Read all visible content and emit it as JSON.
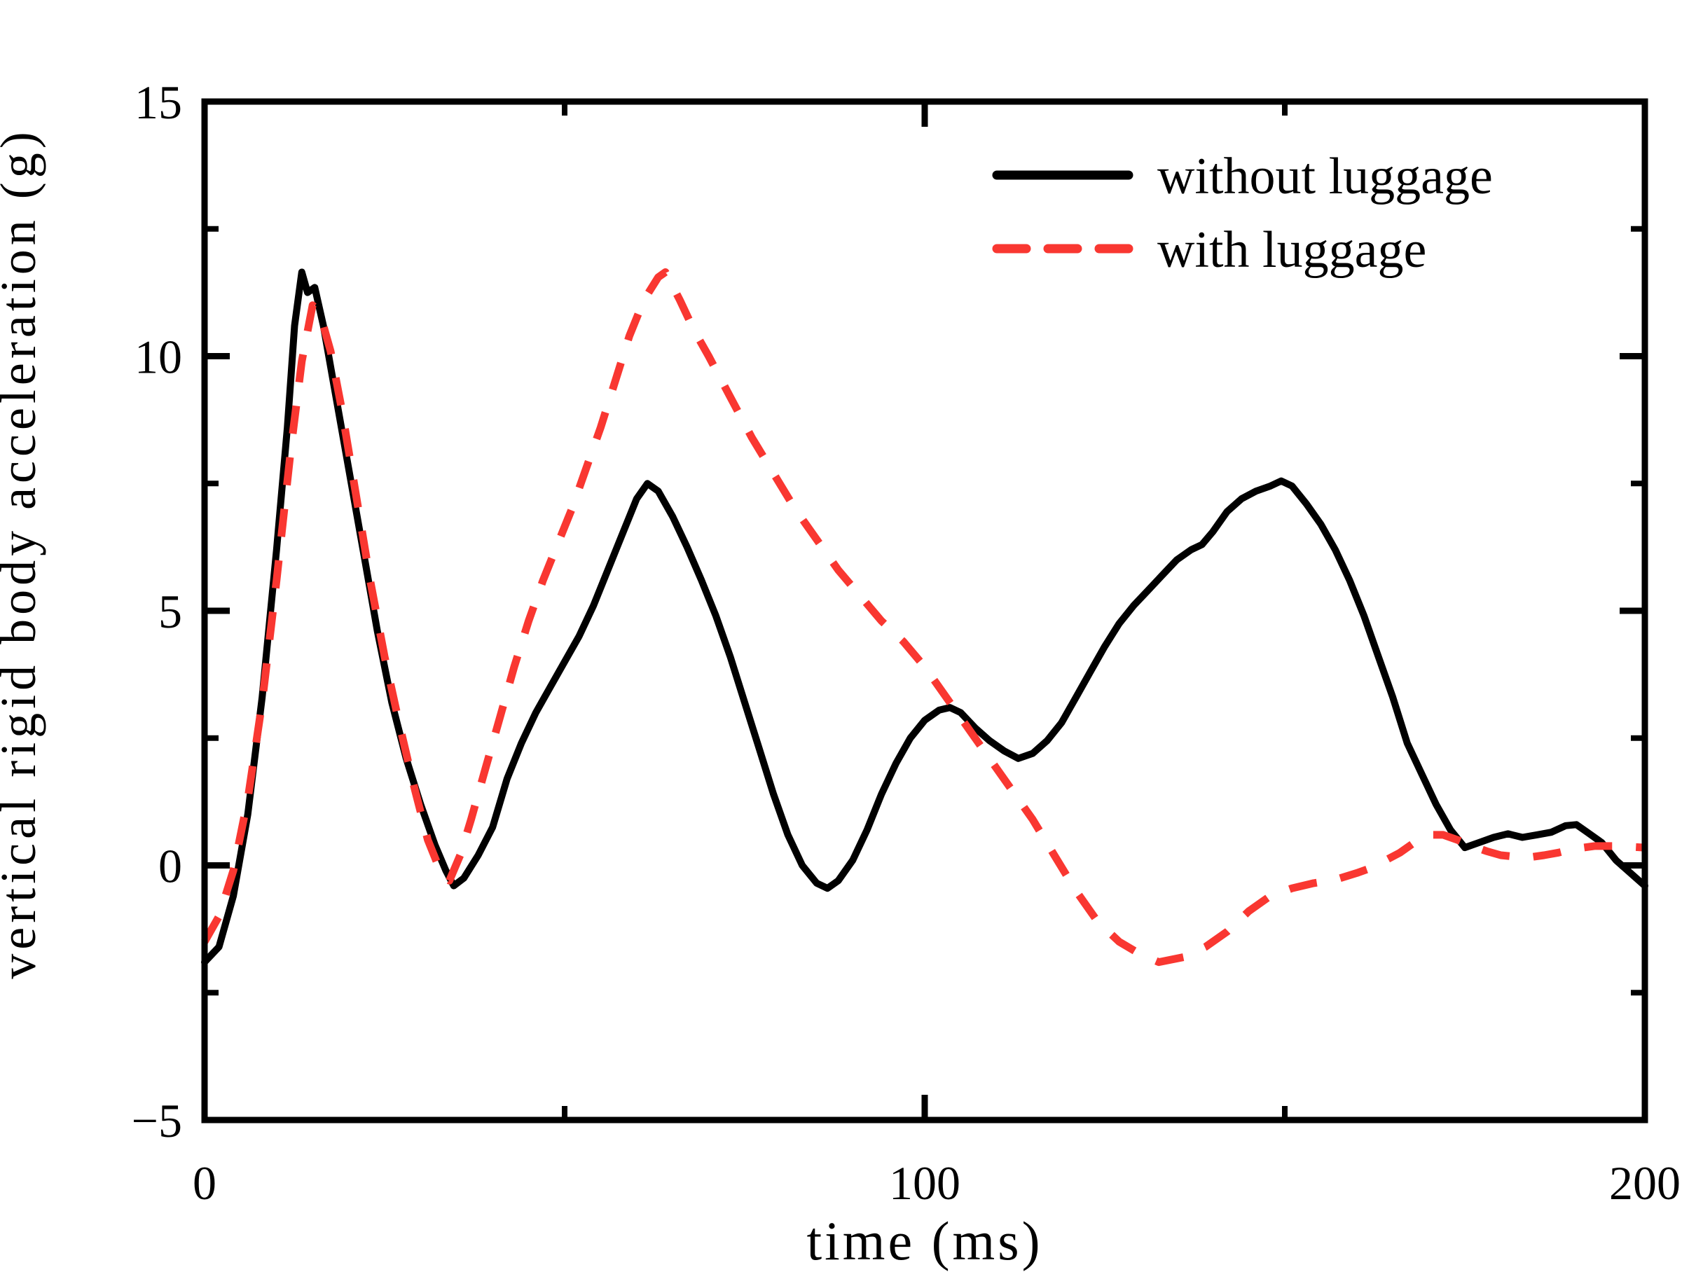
{
  "figure": {
    "background": "#ffffff"
  },
  "chart_data": {
    "type": "line",
    "title": "",
    "xlabel": "time (ms)",
    "ylabel": "vertical rigid body acceleration (g)",
    "xlim": [
      0,
      200
    ],
    "ylim": [
      -5,
      15
    ],
    "grid": false,
    "legend_position": "top-right",
    "x_major_ticks": [
      0,
      100,
      200
    ],
    "x_minor_ticks": [
      50,
      150
    ],
    "x_tick_labels": [
      "0",
      "100",
      "200"
    ],
    "y_major_ticks": [
      -5,
      0,
      5,
      10,
      15
    ],
    "y_minor_ticks": [
      -2.5,
      2.5,
      7.5,
      12.5
    ],
    "y_tick_labels": [
      "−5",
      "0",
      "5",
      "10",
      "15"
    ],
    "series": [
      {
        "name": "without luggage",
        "color": "#000000",
        "line_style": "solid",
        "points": [
          [
            0,
            -1.9
          ],
          [
            2,
            -1.6
          ],
          [
            4,
            -0.6
          ],
          [
            6,
            1.0
          ],
          [
            8,
            3.3
          ],
          [
            10,
            6.2
          ],
          [
            11.5,
            8.6
          ],
          [
            12.5,
            10.6
          ],
          [
            13.5,
            11.65
          ],
          [
            14.3,
            11.25
          ],
          [
            15.3,
            11.35
          ],
          [
            16.5,
            10.6
          ],
          [
            18,
            9.4
          ],
          [
            20,
            7.8
          ],
          [
            22,
            6.2
          ],
          [
            24,
            4.6
          ],
          [
            26,
            3.2
          ],
          [
            28,
            2.1
          ],
          [
            30,
            1.2
          ],
          [
            32,
            0.4
          ],
          [
            33.5,
            -0.1
          ],
          [
            34.6,
            -0.4
          ],
          [
            36,
            -0.25
          ],
          [
            38,
            0.2
          ],
          [
            40,
            0.75
          ],
          [
            42,
            1.7
          ],
          [
            44,
            2.4
          ],
          [
            46,
            3.0
          ],
          [
            48,
            3.5
          ],
          [
            50,
            4.0
          ],
          [
            52,
            4.5
          ],
          [
            54,
            5.1
          ],
          [
            56,
            5.8
          ],
          [
            58,
            6.5
          ],
          [
            60,
            7.2
          ],
          [
            61.5,
            7.5
          ],
          [
            63,
            7.35
          ],
          [
            65,
            6.85
          ],
          [
            67,
            6.25
          ],
          [
            69,
            5.6
          ],
          [
            71,
            4.9
          ],
          [
            73,
            4.1
          ],
          [
            75,
            3.2
          ],
          [
            77,
            2.3
          ],
          [
            79,
            1.4
          ],
          [
            81,
            0.6
          ],
          [
            83,
            0.0
          ],
          [
            85,
            -0.35
          ],
          [
            86.5,
            -0.45
          ],
          [
            88,
            -0.3
          ],
          [
            90,
            0.1
          ],
          [
            92,
            0.7
          ],
          [
            94,
            1.4
          ],
          [
            96,
            2.0
          ],
          [
            98,
            2.5
          ],
          [
            100,
            2.85
          ],
          [
            102,
            3.05
          ],
          [
            103.5,
            3.1
          ],
          [
            105,
            3.0
          ],
          [
            107,
            2.7
          ],
          [
            109,
            2.45
          ],
          [
            111,
            2.25
          ],
          [
            113,
            2.1
          ],
          [
            115,
            2.2
          ],
          [
            117,
            2.45
          ],
          [
            119,
            2.8
          ],
          [
            121,
            3.3
          ],
          [
            123,
            3.8
          ],
          [
            125,
            4.3
          ],
          [
            127,
            4.75
          ],
          [
            129,
            5.1
          ],
          [
            131,
            5.4
          ],
          [
            133,
            5.7
          ],
          [
            135,
            6.0
          ],
          [
            137,
            6.2
          ],
          [
            138.5,
            6.3
          ],
          [
            140,
            6.55
          ],
          [
            142,
            6.95
          ],
          [
            144,
            7.2
          ],
          [
            146,
            7.35
          ],
          [
            148,
            7.45
          ],
          [
            149.5,
            7.55
          ],
          [
            151,
            7.45
          ],
          [
            153,
            7.1
          ],
          [
            155,
            6.7
          ],
          [
            157,
            6.2
          ],
          [
            159,
            5.6
          ],
          [
            161,
            4.9
          ],
          [
            163,
            4.1
          ],
          [
            165,
            3.3
          ],
          [
            167,
            2.4
          ],
          [
            169,
            1.8
          ],
          [
            171,
            1.2
          ],
          [
            173,
            0.7
          ],
          [
            175,
            0.35
          ],
          [
            177,
            0.45
          ],
          [
            179,
            0.55
          ],
          [
            181,
            0.62
          ],
          [
            183,
            0.55
          ],
          [
            185,
            0.6
          ],
          [
            187,
            0.65
          ],
          [
            189,
            0.78
          ],
          [
            190.5,
            0.8
          ],
          [
            192,
            0.65
          ],
          [
            194,
            0.45
          ],
          [
            196,
            0.1
          ],
          [
            198,
            -0.15
          ],
          [
            200,
            -0.4
          ]
        ]
      },
      {
        "name": "with luggage",
        "color": "#f93731",
        "line_style": "dashed",
        "points": [
          [
            0,
            -1.5
          ],
          [
            2,
            -1.0
          ],
          [
            4,
            -0.1
          ],
          [
            6,
            1.3
          ],
          [
            8,
            3.2
          ],
          [
            10,
            5.6
          ],
          [
            12,
            8.2
          ],
          [
            13.5,
            9.9
          ],
          [
            15,
            11.0
          ],
          [
            16,
            10.85
          ],
          [
            17.5,
            10.1
          ],
          [
            19,
            9.0
          ],
          [
            21,
            7.3
          ],
          [
            23,
            5.6
          ],
          [
            25,
            4.1
          ],
          [
            27,
            2.8
          ],
          [
            29,
            1.6
          ],
          [
            31,
            0.5
          ],
          [
            33,
            -0.2
          ],
          [
            34,
            -0.3
          ],
          [
            35.5,
            0.2
          ],
          [
            37,
            0.9
          ],
          [
            39,
            1.9
          ],
          [
            41,
            2.9
          ],
          [
            43,
            3.9
          ],
          [
            45,
            4.8
          ],
          [
            47,
            5.6
          ],
          [
            49,
            6.3
          ],
          [
            51,
            7.0
          ],
          [
            53,
            7.8
          ],
          [
            55,
            8.6
          ],
          [
            57,
            9.5
          ],
          [
            59,
            10.4
          ],
          [
            61,
            11.1
          ],
          [
            63,
            11.55
          ],
          [
            64,
            11.65
          ],
          [
            66,
            11.1
          ],
          [
            68,
            10.5
          ],
          [
            70,
            10.0
          ],
          [
            73,
            9.2
          ],
          [
            76,
            8.4
          ],
          [
            79,
            7.7
          ],
          [
            82,
            7.0
          ],
          [
            85,
            6.4
          ],
          [
            88,
            5.8
          ],
          [
            91,
            5.3
          ],
          [
            94,
            4.8
          ],
          [
            97,
            4.4
          ],
          [
            100,
            3.9
          ],
          [
            103,
            3.3
          ],
          [
            106,
            2.7
          ],
          [
            109,
            2.1
          ],
          [
            112,
            1.5
          ],
          [
            115,
            0.9
          ],
          [
            118,
            0.2
          ],
          [
            121,
            -0.5
          ],
          [
            124,
            -1.1
          ],
          [
            127,
            -1.5
          ],
          [
            130,
            -1.75
          ],
          [
            132.5,
            -1.9
          ],
          [
            136,
            -1.8
          ],
          [
            139,
            -1.6
          ],
          [
            142,
            -1.3
          ],
          [
            145,
            -0.9
          ],
          [
            148,
            -0.6
          ],
          [
            151,
            -0.45
          ],
          [
            154,
            -0.35
          ],
          [
            157,
            -0.28
          ],
          [
            160,
            -0.15
          ],
          [
            162,
            -0.05
          ],
          [
            164,
            0.1
          ],
          [
            166,
            0.25
          ],
          [
            168,
            0.45
          ],
          [
            170,
            0.6
          ],
          [
            172,
            0.6
          ],
          [
            174,
            0.5
          ],
          [
            176,
            0.38
          ],
          [
            178,
            0.28
          ],
          [
            180,
            0.2
          ],
          [
            182,
            0.17
          ],
          [
            184,
            0.16
          ],
          [
            186,
            0.2
          ],
          [
            188,
            0.25
          ],
          [
            190,
            0.32
          ],
          [
            193,
            0.38
          ],
          [
            196,
            0.38
          ],
          [
            200,
            0.35
          ]
        ]
      }
    ]
  }
}
